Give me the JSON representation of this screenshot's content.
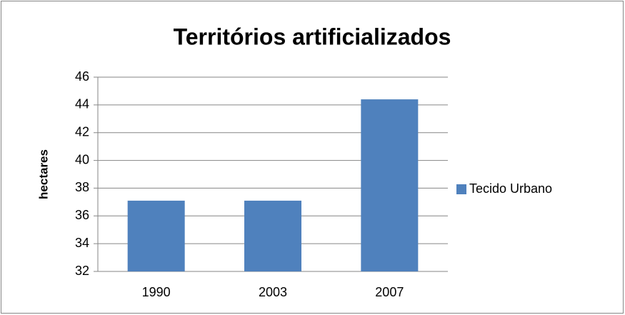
{
  "chart_data": {
    "type": "bar",
    "title": "Territórios artificializados",
    "y_label": "hectares",
    "categories": [
      "1990",
      "2003",
      "2007"
    ],
    "series": [
      {
        "name": "Tecido Urbano",
        "color": "#4f81bd",
        "values": [
          37.1,
          37.1,
          44.4
        ]
      }
    ],
    "ylim": [
      32,
      46
    ],
    "yticks": [
      32,
      34,
      36,
      38,
      40,
      42,
      44,
      46
    ],
    "grid": true,
    "legend": "right"
  }
}
